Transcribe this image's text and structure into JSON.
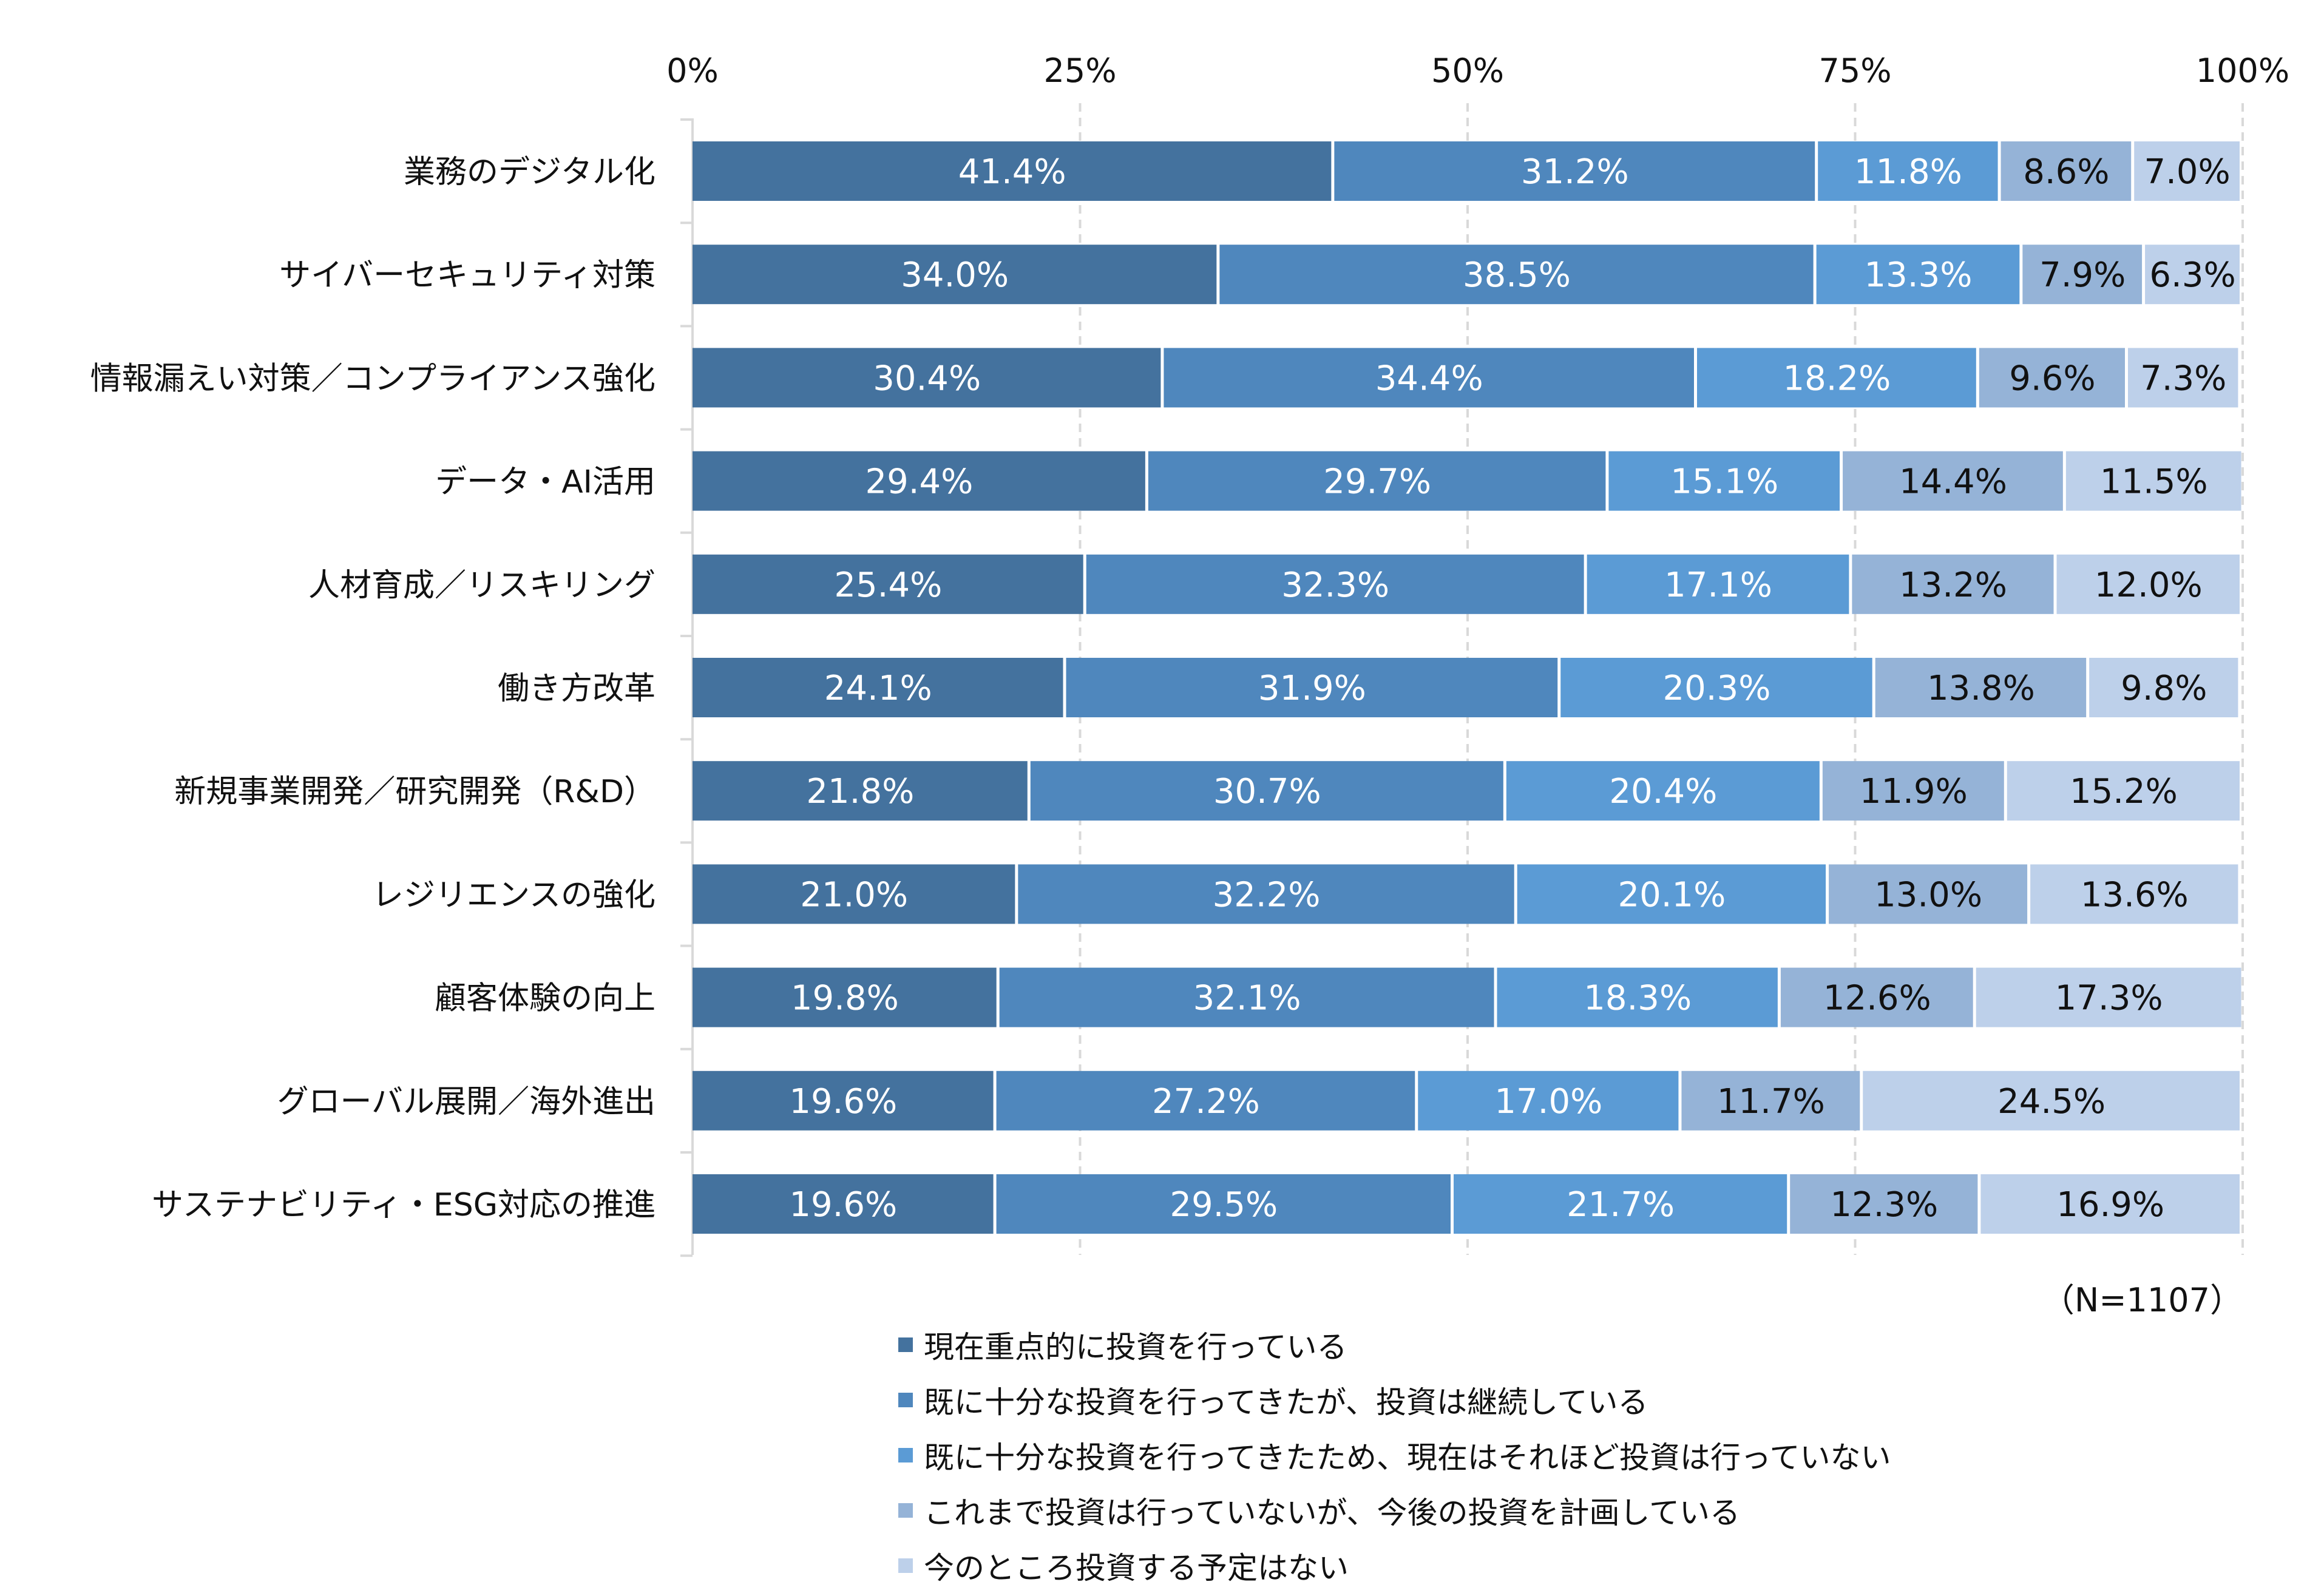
{
  "chart_data": {
    "type": "bar",
    "orientation": "horizontal",
    "stacked": true,
    "xlim": [
      0,
      100
    ],
    "x_ticks": [
      "0%",
      "25%",
      "50%",
      "75%",
      "100%"
    ],
    "grid": "vertical dashed",
    "legend_placement": "bottom",
    "categories": [
      "業務のデジタル化",
      "サイバーセキュリティ対策",
      "情報漏えい対策／コンプライアンス強化",
      "データ・AI活用",
      "人材育成／リスキリング",
      "働き方改革",
      "新規事業開発／研究開発（R&D）",
      "レジリエンスの強化",
      "顧客体験の向上",
      "グローバル展開／海外進出",
      "サステナビリティ・ESG対応の推進"
    ],
    "series": [
      {
        "name": "現在重点的に投資を行っている",
        "color": "#44729e",
        "values": [
          41.4,
          34.0,
          30.4,
          29.4,
          25.4,
          24.1,
          21.8,
          21.0,
          19.8,
          19.6,
          19.6
        ]
      },
      {
        "name": "既に十分な投資を行ってきたが、投資は継続している",
        "color": "#4f87bd",
        "values": [
          31.2,
          38.5,
          34.4,
          29.7,
          32.3,
          31.9,
          30.7,
          32.2,
          32.1,
          27.2,
          29.5
        ]
      },
      {
        "name": "既に十分な投資を行ってきたため、現在はそれほど投資は行っていない",
        "color": "#5b9bd5",
        "values": [
          11.8,
          13.3,
          18.2,
          15.1,
          17.1,
          20.3,
          20.4,
          20.1,
          18.3,
          17.0,
          21.7
        ]
      },
      {
        "name": "これまで投資は行っていないが、今後の投資を計画している",
        "color": "#95b3d7",
        "values": [
          8.6,
          7.9,
          9.6,
          14.4,
          13.2,
          13.8,
          11.9,
          13.0,
          12.6,
          11.7,
          12.3
        ]
      },
      {
        "name": "今のところ投資する予定はない",
        "color": "#bdd0ea",
        "values": [
          7.0,
          6.3,
          7.3,
          11.5,
          12.0,
          9.8,
          15.2,
          13.6,
          17.3,
          24.5,
          16.9
        ]
      }
    ],
    "note": "（N=1107）"
  }
}
